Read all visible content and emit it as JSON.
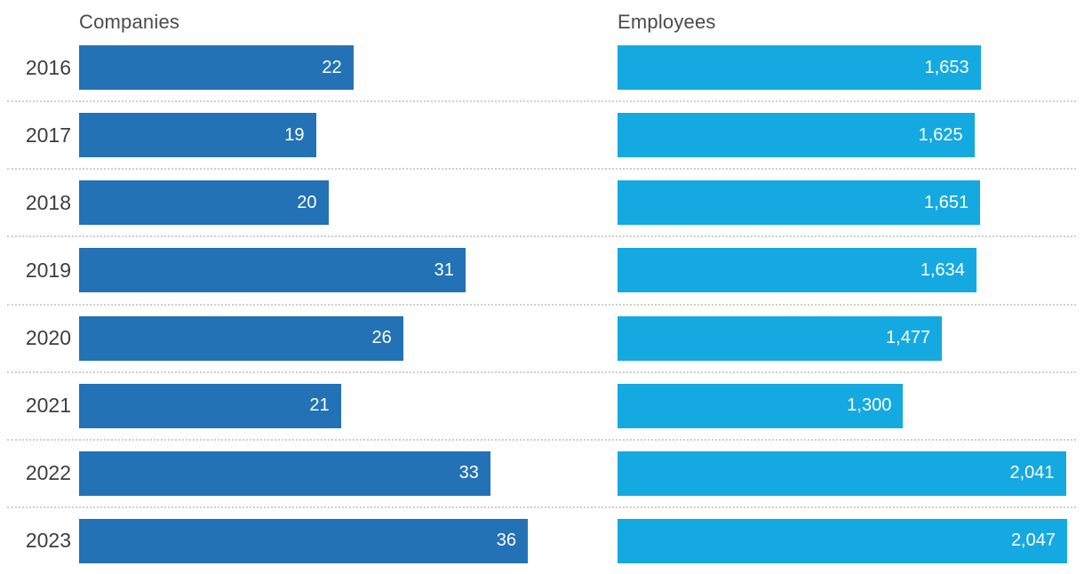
{
  "chart_data": {
    "type": "bar",
    "orientation": "horizontal",
    "title": "",
    "categories": [
      "2016",
      "2017",
      "2018",
      "2019",
      "2020",
      "2021",
      "2022",
      "2023"
    ],
    "series": [
      {
        "key": "companies",
        "name": "Companies",
        "values": [
          22,
          19,
          20,
          31,
          26,
          21,
          33,
          36
        ],
        "labels": [
          "22",
          "19",
          "20",
          "31",
          "26",
          "21",
          "33",
          "36"
        ],
        "color": "#2272b5",
        "axis_max": 36
      },
      {
        "key": "employees",
        "name": "Employees",
        "values": [
          1653,
          1625,
          1651,
          1634,
          1477,
          1300,
          2041,
          2047
        ],
        "labels": [
          "1,653",
          "1,625",
          "1,651",
          "1,634",
          "1,477",
          "1,300",
          "2,041",
          "2,047"
        ],
        "color": "#15a9e1",
        "axis_max": 2047
      }
    ],
    "layout": {
      "value_labels": "inside-right",
      "row_separator": "dotted",
      "separator_color": "#cfcfcf",
      "grid": false,
      "legend": "column-headers-top"
    }
  }
}
